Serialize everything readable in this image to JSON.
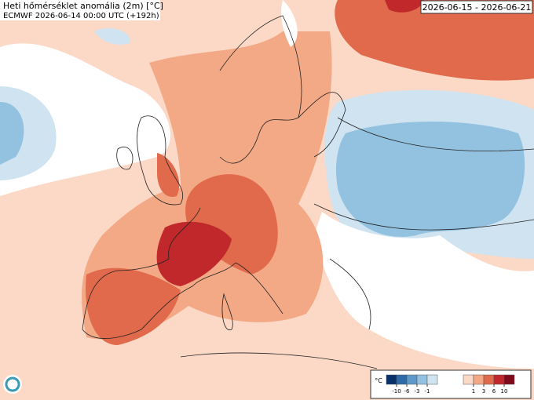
{
  "header": {
    "title": "Heti hőmérséklet anomália (2m) [°C]",
    "subtitle": "ECMWF 2026-06-14 00:00 UTC (+192h)",
    "period": "2026-06-15 - 2026-06-21"
  },
  "legend": {
    "unit": "°C",
    "negative": {
      "ticks": [
        -10,
        -6,
        -3,
        -1
      ],
      "colors": [
        "#08306b",
        "#2f6aa8",
        "#5d9acb",
        "#93c1e0",
        "#cfe3f1"
      ]
    },
    "positive": {
      "ticks": [
        1,
        3,
        6,
        10
      ],
      "colors": [
        "#fbd9c6",
        "#f3a986",
        "#e06a4b",
        "#c0282b",
        "#7e0a1c"
      ]
    }
  }
}
